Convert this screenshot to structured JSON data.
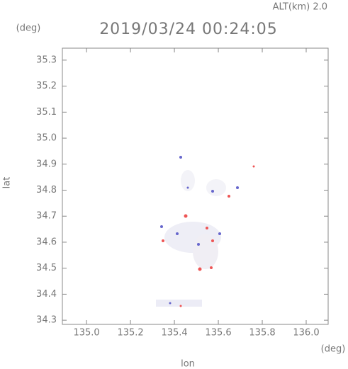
{
  "chart_data": {
    "type": "map",
    "altitude_label": "ALT(km)  2.0",
    "title": "2019/03/24 00:24:05",
    "ylabel": "lat",
    "xlabel": "lon",
    "y_unit": "(deg)",
    "x_unit": "(deg)",
    "xlim": [
      134.89,
      136.1
    ],
    "ylim": [
      34.284,
      35.346
    ],
    "xticks": [
      {
        "value": 135.0,
        "label": "135.0"
      },
      135.2,
      135.4,
      135.6,
      135.8,
      {
        "value": 136.0,
        "label": "136.0"
      }
    ],
    "yticks": [
      35.3,
      35.2,
      35.1,
      {
        "value": 35.0,
        "label": "35.0"
      },
      34.9,
      34.8,
      34.7,
      34.6,
      34.5,
      34.4,
      34.3
    ]
  }
}
